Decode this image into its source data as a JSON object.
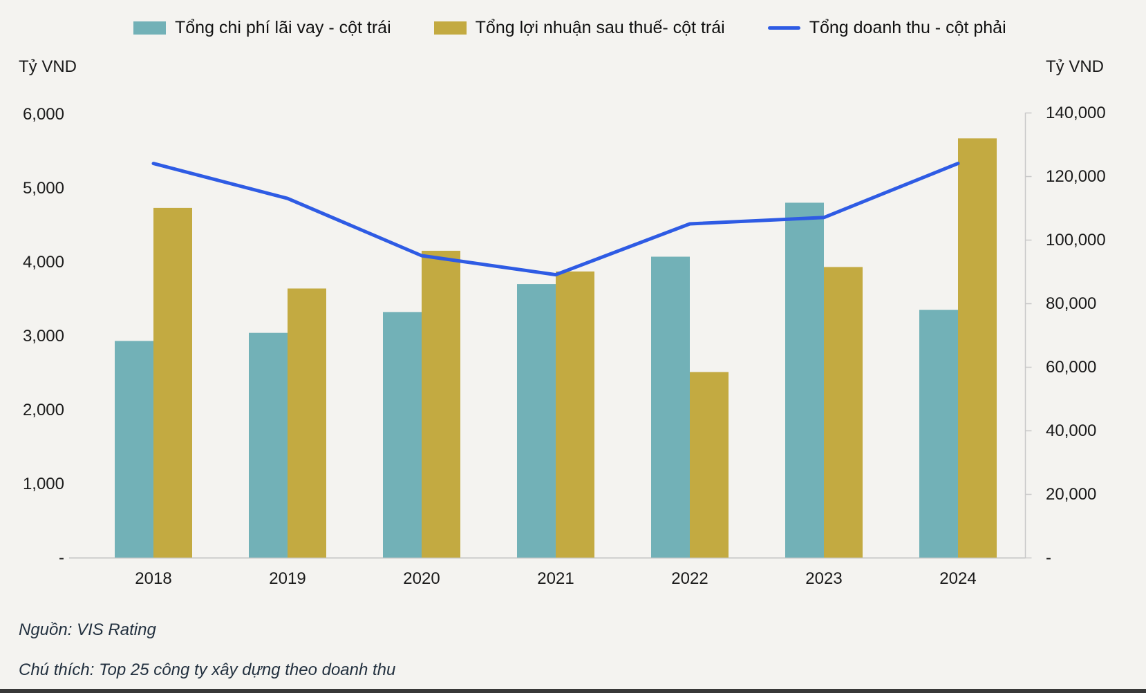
{
  "page": {
    "background": "#f4f3f0",
    "bottom_bar_color": "#383838"
  },
  "legend": [
    {
      "label": "Tổng chi phí lãi vay - cột trái",
      "color": "#72b1b7",
      "marker": "rect"
    },
    {
      "label": "Tổng lợi nhuận sau thuế- cột trái",
      "color": "#c3aa41",
      "marker": "rect"
    },
    {
      "label": "Tổng doanh thu - cột phải",
      "color": "#2e5be4",
      "marker": "line"
    }
  ],
  "chart_data": {
    "type": "bar",
    "subtype": "grouped-bars-with-line",
    "categories": [
      "2018",
      "2019",
      "2020",
      "2021",
      "2022",
      "2023",
      "2024"
    ],
    "series": [
      {
        "name": "Tổng chi phí lãi vay - cột trái",
        "type": "bar",
        "axis": "left",
        "color": "#72b1b7",
        "values": [
          2930,
          3040,
          3320,
          3700,
          4070,
          4800,
          3350
        ]
      },
      {
        "name": "Tổng lợi nhuận sau thuế- cột trái",
        "type": "bar",
        "axis": "left",
        "color": "#c3aa41",
        "values": [
          4730,
          3640,
          4150,
          3870,
          2510,
          3930,
          5670
        ]
      },
      {
        "name": "Tổng doanh thu - cột phải",
        "type": "line",
        "axis": "right",
        "color": "#2e5be4",
        "values": [
          124000,
          113000,
          95000,
          89000,
          105000,
          107000,
          124000
        ]
      }
    ],
    "left_axis": {
      "label": "Tỷ VND",
      "min": 0,
      "max": 6000,
      "tick_step": 1000,
      "zero_label": "-"
    },
    "right_axis": {
      "label": "Tỷ VND",
      "min": 0,
      "max": 140000,
      "tick_step": 20000,
      "zero_label": "-"
    },
    "grid": "off",
    "legend_position": "top",
    "axis_line_color": "#c9c9c9",
    "text_color": "#1a1a1a"
  },
  "footer": {
    "source": "Nguồn: VIS Rating",
    "note": "Chú thích: Top 25 công ty xây dựng theo doanh thu"
  }
}
